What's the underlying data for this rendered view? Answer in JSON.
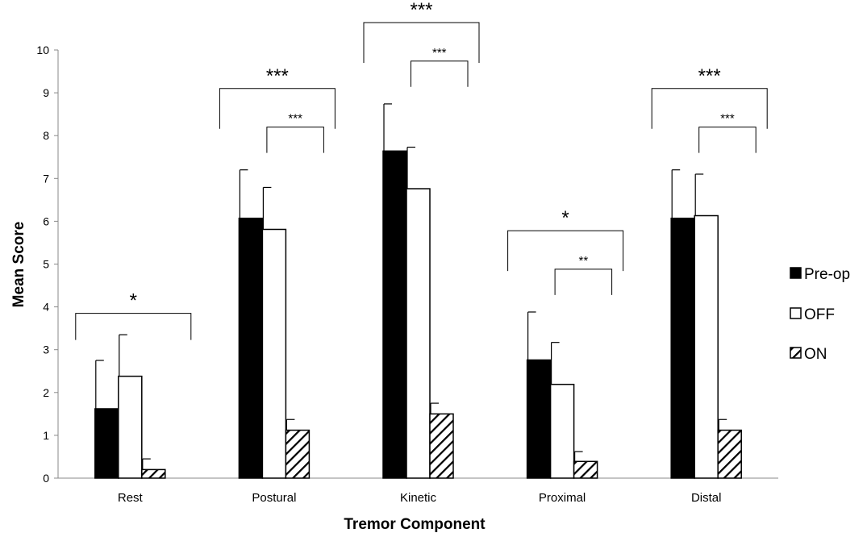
{
  "chart_data": {
    "type": "bar",
    "title": "",
    "xlabel": "Tremor Component",
    "ylabel": "Mean Score",
    "ylim": [
      0,
      10
    ],
    "yticks": [
      "0",
      "1",
      "2",
      "3",
      "4",
      "5",
      "6",
      "7",
      "8",
      "9",
      "10"
    ],
    "grid": false,
    "legend_position": "right",
    "categories": [
      "Rest",
      "Postural",
      "Kinetic",
      "Proximal",
      "Distal"
    ],
    "series": [
      {
        "name": "Pre-op",
        "fill": "#000000",
        "pattern": "solid",
        "values": [
          1.62,
          6.07,
          7.64,
          2.76,
          6.07
        ],
        "error": [
          1.13,
          1.13,
          1.1,
          1.12,
          1.13
        ]
      },
      {
        "name": "OFF",
        "fill": "#ffffff",
        "pattern": "none",
        "values": [
          2.38,
          5.81,
          6.76,
          2.19,
          6.13
        ],
        "error": [
          0.97,
          0.98,
          0.97,
          0.98,
          0.97
        ]
      },
      {
        "name": "ON",
        "fill": "#ffffff",
        "pattern": "diagonal-hatch",
        "values": [
          0.2,
          1.12,
          1.5,
          0.39,
          1.12
        ],
        "error": [
          0.25,
          0.25,
          0.25,
          0.23,
          0.25
        ]
      }
    ],
    "significance": [
      {
        "category": "Rest",
        "comparison": "Pre-op vs ON",
        "label": "*"
      },
      {
        "category": "Postural",
        "comparison": "Pre-op vs ON",
        "label": "***"
      },
      {
        "category": "Postural",
        "comparison": "OFF vs ON",
        "label": "***"
      },
      {
        "category": "Kinetic",
        "comparison": "Pre-op vs ON",
        "label": "***"
      },
      {
        "category": "Kinetic",
        "comparison": "OFF vs ON",
        "label": "***"
      },
      {
        "category": "Proximal",
        "comparison": "Pre-op vs ON",
        "label": "*"
      },
      {
        "category": "Proximal",
        "comparison": "OFF vs ON",
        "label": "**"
      },
      {
        "category": "Distal",
        "comparison": "Pre-op vs ON",
        "label": "***"
      },
      {
        "category": "Distal",
        "comparison": "OFF vs ON",
        "label": "***"
      }
    ]
  }
}
